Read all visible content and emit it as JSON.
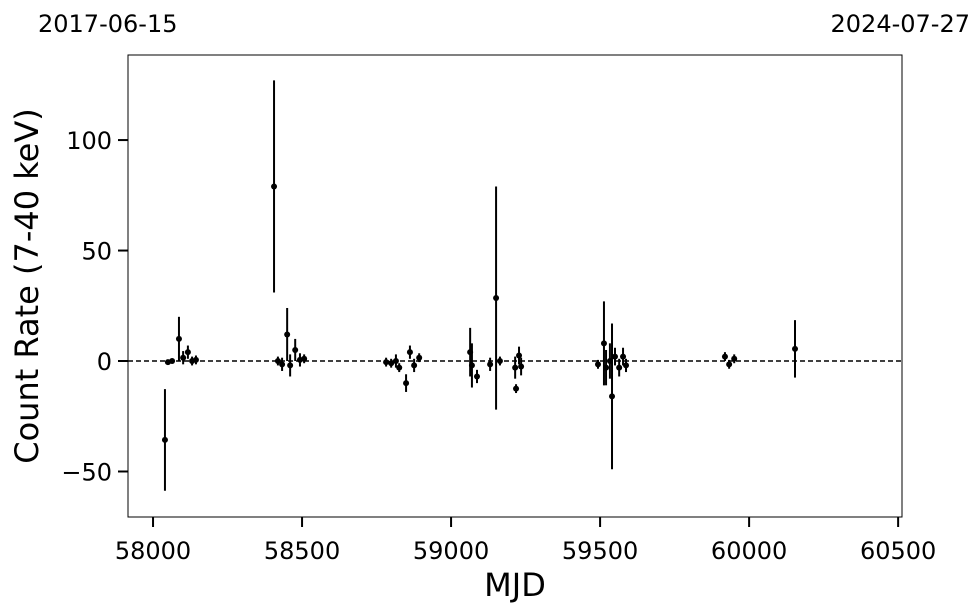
{
  "chart_data": {
    "type": "errorbar-scatter",
    "annotations": [
      "2017-06-15",
      "2024-07-27"
    ],
    "xlabel": "MJD",
    "ylabel": "Count Rate (7-40 keV)",
    "xlim": [
      57916,
      60513
    ],
    "ylim": [
      -70.6,
      138.5
    ],
    "xticks": [
      58000,
      58500,
      59000,
      59500,
      60000,
      60500
    ],
    "yticks": [
      {
        "value": -50,
        "label": "−50"
      },
      0,
      50,
      100
    ],
    "hline": 0,
    "color": "#000000",
    "x": [
      58040,
      58050,
      58064,
      58087,
      58101,
      58117,
      58131,
      58144,
      58406,
      58419,
      58433,
      58450,
      58460,
      58477,
      58493,
      58507,
      58782,
      58799,
      58815,
      58826,
      58849,
      58862,
      58876,
      58893,
      59064,
      59070,
      59087,
      59131,
      59151,
      59164,
      59215,
      59218,
      59228,
      59235,
      59493,
      59513,
      59520,
      59533,
      59540,
      59550,
      59564,
      59577,
      59587,
      59919,
      59933,
      59950,
      60154
    ],
    "values": [
      -35.7,
      -0.5,
      0,
      10,
      1.5,
      4,
      0,
      0.5,
      79,
      0,
      -1.5,
      12,
      -2,
      5,
      0.5,
      1,
      -0.5,
      -1,
      0,
      -3,
      -10,
      4,
      -2,
      1.5,
      4,
      -2,
      -7,
      -1.5,
      28.5,
      0,
      -3,
      -12.5,
      2.5,
      -2.5,
      -1.5,
      8,
      -3,
      0,
      -16,
      2,
      -3,
      2,
      -2,
      2,
      -1.5,
      1,
      5.5
    ],
    "errors": [
      23,
      1,
      1,
      10,
      3,
      3,
      2,
      2,
      48,
      2,
      3,
      12,
      5,
      5,
      3,
      2,
      2,
      2,
      3,
      2,
      4,
      3,
      3,
      2,
      11,
      10,
      3,
      3,
      50.5,
      2,
      5,
      2,
      4,
      4,
      2,
      19,
      8,
      8,
      33,
      4,
      4,
      4,
      3,
      2,
      2,
      2,
      13
    ]
  }
}
